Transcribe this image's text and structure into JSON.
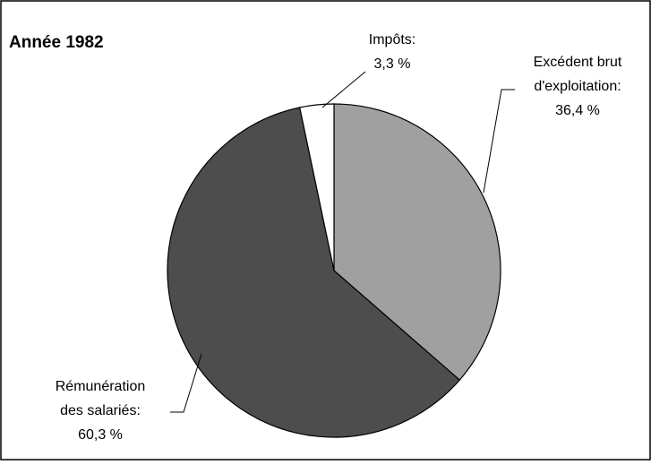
{
  "chart_data": {
    "type": "pie",
    "title": "Année 1982",
    "categories": [
      "Excédent brut d'exploitation:",
      "Rémunération des salariés:",
      "Impôts:"
    ],
    "values": [
      36.4,
      60.3,
      3.3
    ],
    "value_labels": [
      "36,4 %",
      "60,3 %",
      "3,3 %"
    ],
    "colors": [
      "#a0a0a0",
      "#4d4d4d",
      "#ffffff"
    ]
  }
}
